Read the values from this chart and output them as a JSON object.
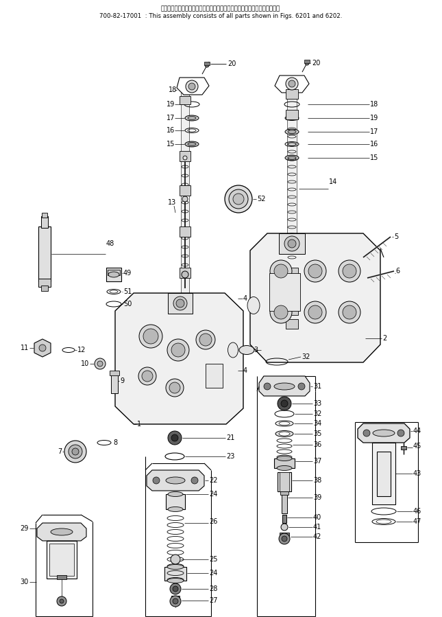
{
  "title_line1": "このアセンブリの構成部品は第６２０１図および第６２０２図を含みます；",
  "title_line2": "700-82-17001  : This assembly consists of all parts shown in Figs. 6201 and 6202.",
  "bg_color": "#ffffff",
  "lc": "#000000",
  "lc_gray": "#666666",
  "lc_lgray": "#aaaaaa"
}
